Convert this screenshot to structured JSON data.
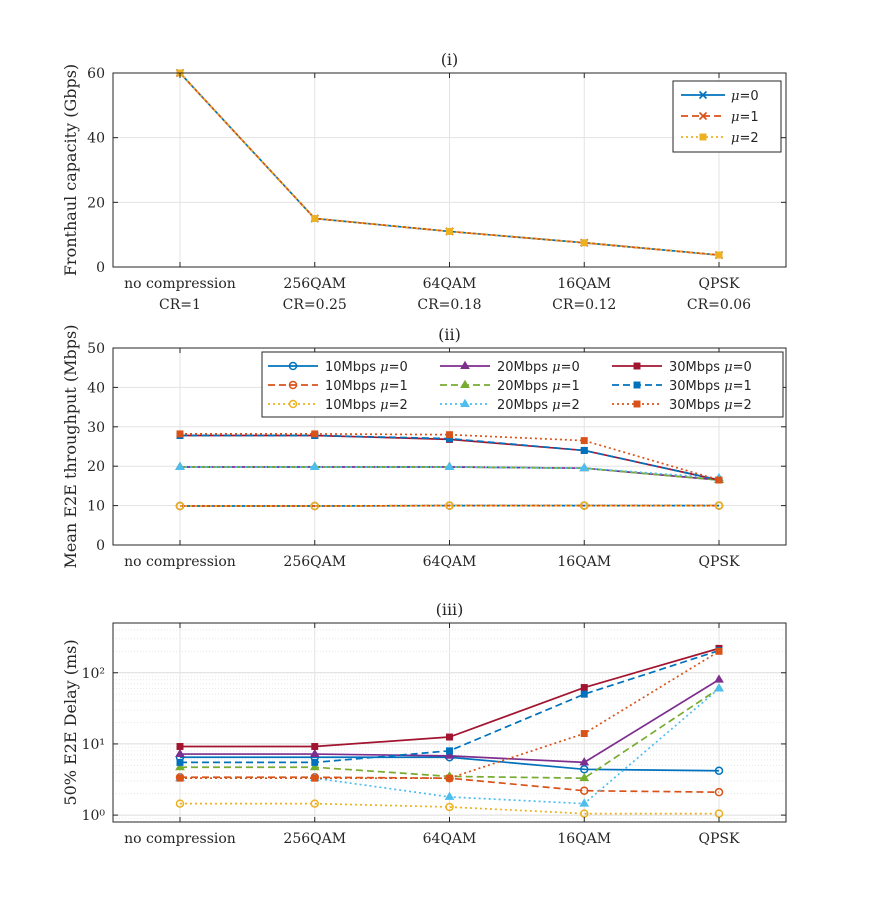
{
  "chart_data": [
    {
      "id": "fronthaul",
      "type": "line",
      "scale": "linear",
      "title": "(i)",
      "xlabel": "",
      "ylabel": "Fronthaul capacity (Gbps)",
      "ylim": [
        0,
        60
      ],
      "yticks": [
        0,
        20,
        40,
        60
      ],
      "ytick_labels": [
        "0",
        "20",
        "40",
        "60"
      ],
      "categories": [
        "no compression",
        "256QAM",
        "64QAM",
        "16QAM",
        "QPSK"
      ],
      "categories_line2": [
        "CR=1",
        "CR=0.25",
        "CR=0.18",
        "CR=0.12",
        "CR=0.06"
      ],
      "legend_position": "top-right",
      "legend_columns": 1,
      "series": [
        {
          "name": "μ=0",
          "color": "#0072BD",
          "dash": "solid",
          "marker": "x",
          "values": [
            60,
            15,
            11,
            7.5,
            3.7
          ]
        },
        {
          "name": "μ=1",
          "color": "#D95319",
          "dash": "dashed",
          "marker": "x",
          "values": [
            60,
            15,
            11,
            7.5,
            3.7
          ]
        },
        {
          "name": "μ=2",
          "color": "#EDB120",
          "dash": "dotted",
          "marker": "square",
          "values": [
            60,
            15,
            11,
            7.5,
            3.7
          ]
        }
      ]
    },
    {
      "id": "throughput",
      "type": "line",
      "scale": "linear",
      "title": "(ii)",
      "xlabel": "",
      "ylabel": "Mean E2E throughput (Mbps)",
      "ylim": [
        0,
        50
      ],
      "yticks": [
        0,
        10,
        20,
        30,
        40,
        50
      ],
      "ytick_labels": [
        "0",
        "10",
        "20",
        "30",
        "40",
        "50"
      ],
      "categories": [
        "no compression",
        "256QAM",
        "64QAM",
        "16QAM",
        "QPSK"
      ],
      "legend_position": "top-right",
      "legend_columns": 3,
      "series": [
        {
          "name": "10Mbps μ=0",
          "color": "#0072BD",
          "dash": "solid",
          "marker": "circle",
          "values": [
            9.9,
            9.9,
            10,
            10,
            10
          ]
        },
        {
          "name": "10Mbps μ=1",
          "color": "#D95319",
          "dash": "dashed",
          "marker": "circle",
          "values": [
            9.9,
            9.9,
            10,
            10,
            10
          ]
        },
        {
          "name": "10Mbps μ=2",
          "color": "#EDB120",
          "dash": "dotted",
          "marker": "circle",
          "values": [
            9.9,
            9.9,
            10,
            10,
            10
          ]
        },
        {
          "name": "20Mbps μ=0",
          "color": "#7E2F8E",
          "dash": "solid",
          "marker": "triangle",
          "values": [
            19.8,
            19.8,
            19.8,
            19.5,
            16.5
          ]
        },
        {
          "name": "20Mbps μ=1",
          "color": "#77AC30",
          "dash": "dashed",
          "marker": "triangle",
          "values": [
            19.8,
            19.8,
            19.8,
            19.5,
            16.5
          ]
        },
        {
          "name": "20Mbps μ=2",
          "color": "#4DBEEE",
          "dash": "dotted",
          "marker": "triangle",
          "values": [
            19.8,
            19.8,
            19.8,
            19.5,
            17
          ]
        },
        {
          "name": "30Mbps μ=0",
          "color": "#A2142F",
          "dash": "solid",
          "marker": "square",
          "values": [
            27.8,
            27.8,
            26.8,
            24,
            16.5
          ]
        },
        {
          "name": "30Mbps μ=1",
          "color": "#0072BD",
          "dash": "dashed",
          "marker": "square",
          "values": [
            27.8,
            27.8,
            27,
            24,
            16.5
          ]
        },
        {
          "name": "30Mbps μ=2",
          "color": "#D95319",
          "dash": "dotted",
          "marker": "square",
          "values": [
            28.2,
            28.2,
            28,
            26.5,
            16.5
          ]
        }
      ]
    },
    {
      "id": "delay",
      "type": "line",
      "scale": "log",
      "title": "(iii)",
      "xlabel": "",
      "ylabel": "50% E2E Delay (ms)",
      "ylim": [
        0.8,
        500
      ],
      "yticks": [
        1,
        10,
        100
      ],
      "ytick_labels": [
        "10⁰",
        "10¹",
        "10²"
      ],
      "categories": [
        "no compression",
        "256QAM",
        "64QAM",
        "16QAM",
        "QPSK"
      ],
      "series": [
        {
          "name": "10Mbps μ=0",
          "color": "#0072BD",
          "dash": "solid",
          "marker": "circle",
          "values": [
            6.5,
            6.5,
            6.5,
            4.4,
            4.2
          ]
        },
        {
          "name": "10Mbps μ=1",
          "color": "#D95319",
          "dash": "dashed",
          "marker": "circle",
          "values": [
            3.4,
            3.4,
            3.3,
            2.2,
            2.1
          ]
        },
        {
          "name": "10Mbps μ=2",
          "color": "#EDB120",
          "dash": "dotted",
          "marker": "circle",
          "values": [
            1.45,
            1.45,
            1.3,
            1.05,
            1.05
          ]
        },
        {
          "name": "20Mbps μ=0",
          "color": "#7E2F8E",
          "dash": "solid",
          "marker": "triangle",
          "values": [
            7.2,
            7.2,
            6.8,
            5.5,
            80
          ]
        },
        {
          "name": "20Mbps μ=1",
          "color": "#77AC30",
          "dash": "dashed",
          "marker": "triangle",
          "values": [
            4.7,
            4.7,
            3.5,
            3.3,
            60
          ]
        },
        {
          "name": "20Mbps μ=2",
          "color": "#4DBEEE",
          "dash": "dotted",
          "marker": "triangle",
          "values": [
            3.3,
            3.3,
            1.8,
            1.45,
            60
          ]
        },
        {
          "name": "30Mbps μ=0",
          "color": "#A2142F",
          "dash": "solid",
          "marker": "square",
          "values": [
            9.2,
            9.2,
            12.5,
            62,
            220
          ]
        },
        {
          "name": "30Mbps μ=1",
          "color": "#0072BD",
          "dash": "dashed",
          "marker": "square",
          "values": [
            5.5,
            5.5,
            8,
            50,
            205
          ]
        },
        {
          "name": "30Mbps μ=2",
          "color": "#D95319",
          "dash": "dotted",
          "marker": "square",
          "values": [
            3.3,
            3.3,
            3.3,
            14,
            200
          ]
        }
      ]
    }
  ]
}
